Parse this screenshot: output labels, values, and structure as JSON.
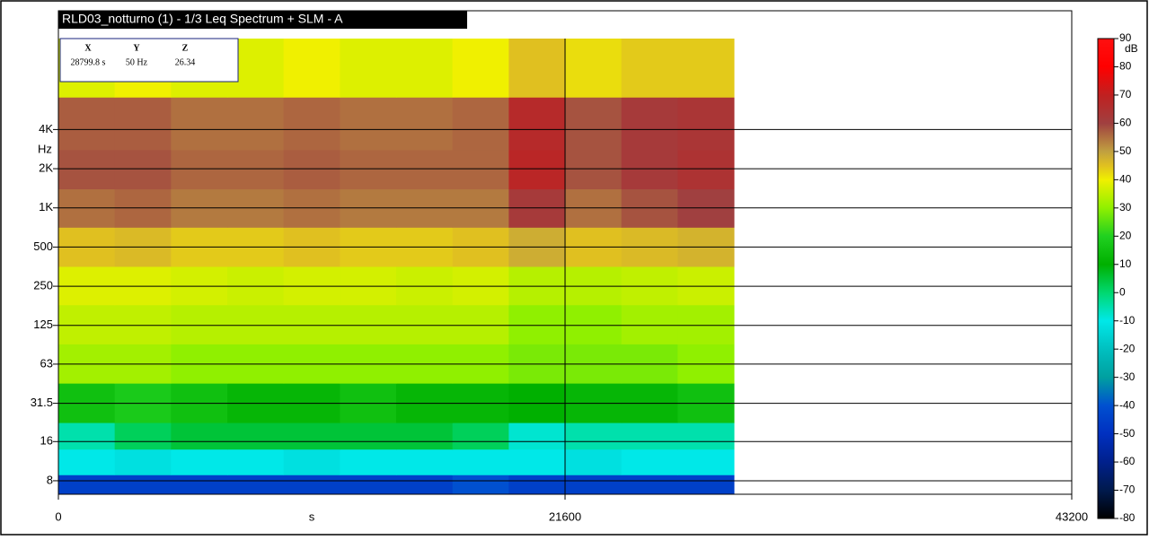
{
  "chart_data": {
    "type": "heatmap",
    "title": "RLD03_notturno (1) - 1/3 Leq Spectrum + SLM - A",
    "x_label": "s",
    "y_label": "Hz",
    "colorbar_label": "dB",
    "readout": {
      "headers": [
        "X",
        "Y",
        "Z"
      ],
      "values": [
        "28799.8 s",
        "50 Hz",
        "26.34"
      ]
    },
    "xlim": [
      0,
      43200
    ],
    "xticks": [
      0,
      21600,
      43200
    ],
    "ylim": [
      6.3,
      20000
    ],
    "log_y": true,
    "yticks": [
      8,
      16,
      31.5,
      63,
      125,
      250,
      500,
      {
        "value": 1000,
        "label": "1K"
      },
      {
        "value": 2000,
        "label": "2K"
      },
      {
        "value": 4000,
        "label": "4K"
      }
    ],
    "grid": true,
    "xbins": [
      0,
      2400,
      4800,
      7200,
      9600,
      12000,
      14400,
      16800,
      19200,
      21600,
      24000,
      26400,
      28800
    ],
    "ybins": [
      6.3,
      8.9,
      14,
      22.4,
      45,
      90,
      180,
      355,
      710,
      1400,
      2800,
      7100,
      20000
    ],
    "z": [
      [
        -45,
        -45,
        -45,
        -45,
        -45,
        -45,
        -45,
        -40,
        -45,
        -45,
        -45,
        -45
      ],
      [
        -10,
        -12,
        -10,
        -10,
        -12,
        -10,
        -10,
        -10,
        -10,
        -12,
        -10,
        -10
      ],
      [
        -5,
        2,
        5,
        5,
        5,
        5,
        5,
        2,
        -8,
        -5,
        -5,
        -5
      ],
      [
        15,
        18,
        15,
        12,
        12,
        15,
        12,
        12,
        10,
        12,
        12,
        15
      ],
      [
        32,
        32,
        30,
        30,
        30,
        30,
        30,
        30,
        28,
        28,
        28,
        30
      ],
      [
        35,
        35,
        34,
        34,
        34,
        34,
        34,
        34,
        30,
        30,
        32,
        32
      ],
      [
        38,
        38,
        37,
        36,
        37,
        37,
        36,
        37,
        34,
        34,
        35,
        36
      ],
      [
        45,
        46,
        44,
        44,
        45,
        44,
        44,
        45,
        48,
        45,
        46,
        47
      ],
      [
        55,
        56,
        54,
        54,
        55,
        54,
        54,
        54,
        62,
        55,
        58,
        60
      ],
      [
        58,
        58,
        56,
        56,
        57,
        56,
        56,
        56,
        68,
        58,
        62,
        64
      ],
      [
        57,
        57,
        55,
        55,
        56,
        55,
        55,
        56,
        67,
        58,
        62,
        63
      ],
      [
        38,
        40,
        38,
        38,
        40,
        38,
        38,
        40,
        45,
        42,
        44,
        44
      ]
    ],
    "zlim": [
      -80,
      90
    ],
    "zticks": [
      -80,
      -70,
      -60,
      -50,
      -40,
      -30,
      -20,
      -10,
      0,
      10,
      20,
      30,
      40,
      50,
      60,
      70,
      80,
      90
    ],
    "colorscale": [
      [
        -80,
        "#000000"
      ],
      [
        -70,
        "#001a4d"
      ],
      [
        -60,
        "#00208c"
      ],
      [
        -50,
        "#0030c0"
      ],
      [
        -40,
        "#0050d0"
      ],
      [
        -30,
        "#00a0a0"
      ],
      [
        -20,
        "#00c0c0"
      ],
      [
        -10,
        "#00e8e8"
      ],
      [
        0,
        "#00d870"
      ],
      [
        10,
        "#00b000"
      ],
      [
        20,
        "#20d020"
      ],
      [
        30,
        "#90f000"
      ],
      [
        40,
        "#f0f000"
      ],
      [
        45,
        "#e0c020"
      ],
      [
        50,
        "#c0a040"
      ],
      [
        60,
        "#a04040"
      ],
      [
        70,
        "#c02020"
      ],
      [
        80,
        "#ff0000"
      ],
      [
        90,
        "#ff1010"
      ]
    ]
  }
}
